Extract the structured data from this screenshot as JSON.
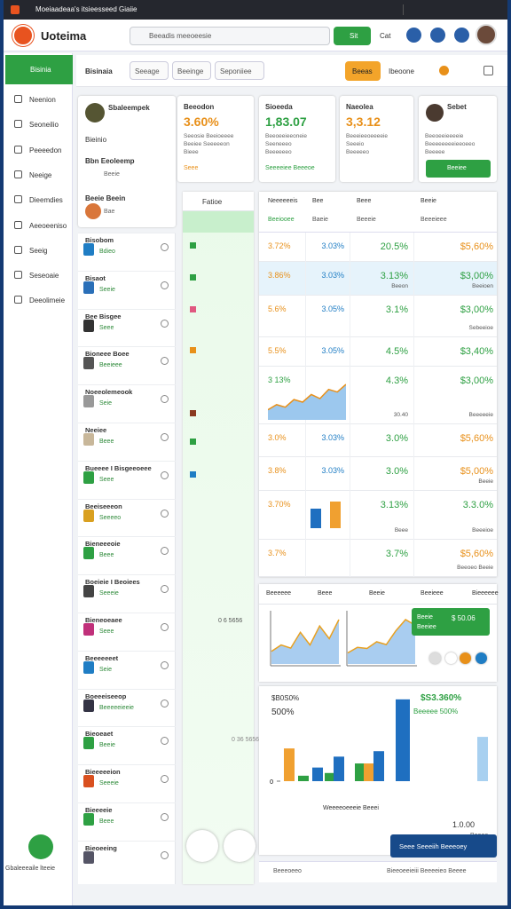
{
  "window": {
    "tab": "Moeiaadeaa's itsieesseed Giaiie"
  },
  "header": {
    "app": "Uoteima",
    "search": "Beeadis meeoeesie",
    "button": "Sit",
    "menu": "Cat"
  },
  "sidebar": {
    "active": "Bisinia",
    "items": [
      "Neenion",
      "Seoneilio",
      "Peeeedon",
      "Neeige",
      "Dieemdies",
      "Aeeoeeniso",
      "Seeig",
      "Seseoaie",
      "Deeolimeie"
    ],
    "footer": "Gbaleeeaile lteeie"
  },
  "toolbar": {
    "title": "Bisinaia",
    "tabs": [
      "Seeage",
      "Beeinge",
      "Seponiiee"
    ],
    "button": "Beeas",
    "link": "Ibeoone"
  },
  "profile": {
    "name": "Sbaleempek",
    "role": "Bieinio",
    "items": [
      {
        "title": "Bbn Eeoleemp",
        "sub": "Beeie"
      },
      {
        "title": "Beeie Beein",
        "sub": "Bae"
      }
    ]
  },
  "cards": [
    {
      "title": "Beeodon",
      "value": "3.60%",
      "lines": [
        "Seeosie Beeioeeee",
        "Beeiee Seeeeeon",
        "Bieee"
      ],
      "footer": "Seee"
    },
    {
      "title": "Sioeeda",
      "value": "1,83.07",
      "lines": [
        "Beeoeeieeoneie",
        "Seeneeeo",
        "Beeeeeeo"
      ],
      "footer": "Seeeeiee Beeeoe"
    },
    {
      "title": "Naeolea",
      "value": "3,3.12",
      "lines": [
        "Beeeieeoeeeeie",
        "Seeeio",
        "Beeeeeo"
      ]
    },
    {
      "title": "Sebet",
      "lines": [
        "Beeoeeieeeeie",
        "Beeeeeeeeieeoeeo",
        "Beeeee"
      ],
      "button": "Beeiee"
    }
  ],
  "list": [
    {
      "title": "Bisobom",
      "sub": "Bdieo"
    },
    {
      "title": "Bisaot",
      "sub": "Seeie"
    },
    {
      "title": "Bee Bisgee",
      "sub": "Seee"
    },
    {
      "title": "Bioneee Boee",
      "sub": "Beeieee"
    },
    {
      "title": "Noeeolemeook",
      "sub": "Seie"
    },
    {
      "title": "Neeiee",
      "sub": "Beee"
    },
    {
      "title": "Bueeee I Bisgeeoeee",
      "sub": "Seee"
    },
    {
      "title": "Beeiseeeon",
      "sub": "Seeeeo"
    },
    {
      "title": "Bieneeeoie",
      "sub": "Beee"
    },
    {
      "title": "Boeieie I Beoiees",
      "sub": "Seeeie"
    },
    {
      "title": "Bieneoeaee",
      "sub": "Seee"
    },
    {
      "title": "Beeeeeeet",
      "sub": "Seie"
    },
    {
      "title": "Boeeeiseeop",
      "sub": "Beeeeeieeie"
    },
    {
      "title": "Bieoeaet",
      "sub": "Beeie"
    },
    {
      "title": "Bieeeeeion",
      "sub": "Seeeie"
    },
    {
      "title": "Bieeeeie",
      "sub": "Beee"
    },
    {
      "title": "Bieoeeing"
    }
  ],
  "green_column": {
    "header": "Fatioe",
    "notes": [
      "0 6 5656",
      "0 36 5656"
    ]
  },
  "table": {
    "headers": [
      "Neeeeeeis",
      "Bee",
      "Beee",
      "Beeie"
    ],
    "subheaders": [
      "Beeiooee",
      "Baeie",
      "Beeeie",
      "Beeeieee"
    ],
    "rows": [
      {
        "a": "3.72%",
        "b": "3.03%",
        "c": "20.5%",
        "d": "$5,60%"
      },
      {
        "a": "3.86%",
        "b": "3.03%",
        "c": "3.13%",
        "d": "$3,00%",
        "c_sub": "Beeon",
        "d_sub": "Beeioen"
      },
      {
        "a": "5.6%",
        "b": "3.05%",
        "c": "3.1%",
        "d": "$3,00%",
        "d_sub": "Sebeeioe"
      },
      {
        "a": "5.5%",
        "b": "3.05%",
        "c": "4.5%",
        "d": "$3,40%"
      },
      {
        "a": "3 13%",
        "c": "4.3%",
        "d": "$3,00%",
        "c_sub": "30.40",
        "d_sub": "Beeeeeie",
        "spark": [
          2,
          3,
          2.5,
          4,
          3.5,
          5,
          4.2,
          6,
          5.5,
          7
        ]
      },
      {
        "a": "3.0%",
        "b": "3.03%",
        "c": "3.0%",
        "d": "$5,60%"
      },
      {
        "a": "3.8%",
        "b": "3.03%",
        "c": "3.0%",
        "d": "$5,00%",
        "d_sub": "Beeie"
      },
      {
        "a": "3.70%",
        "c": "3.13%",
        "d": "3.3.0%",
        "c_sub": "Beee",
        "d_sub": "Beeeioe",
        "bars": [
          {
            "color": "#1f6fc0",
            "value": 55
          },
          {
            "color": "#f0a030",
            "value": 75
          }
        ]
      },
      {
        "a": "3.7%",
        "c": "3.7%",
        "d": "$5,60%",
        "d_sub": "Beeoeo Beeie"
      }
    ]
  },
  "trend": {
    "headers": [
      "Beeeeee",
      "Beee",
      "Beeie",
      "Beeieee",
      "Bieeeeee"
    ],
    "line_a": [
      2,
      3,
      2.5,
      5,
      3,
      6,
      4,
      7
    ],
    "line_b": [
      2,
      3,
      2.8,
      4,
      3.5,
      6,
      8,
      7
    ],
    "callout": {
      "label": "Beeie",
      "value": "$ 50.06",
      "sub": "Beeiee"
    }
  },
  "summary": {
    "left_value": "$B0S0%",
    "left_sub": "500%",
    "right_value": "$S3.360%",
    "right_sub": "Beeeee 500%",
    "ylim": [
      0,
      125
    ],
    "yticks": [
      0
    ],
    "bars": [
      {
        "color": "#f0a030",
        "value": 48
      },
      {
        "color": "#2ea043",
        "value": 8
      },
      {
        "color": "#1f6fc0",
        "value": 20
      },
      {
        "color": "#2ea043",
        "value": 12
      },
      {
        "color": "#1f6fc0",
        "value": 36
      },
      {
        "color": "#2ea043",
        "value": 26
      },
      {
        "color": "#f0a030",
        "value": 26
      },
      {
        "color": "#1f6fc0",
        "value": 44
      },
      {
        "color": "#1f6fc0",
        "value": 120
      },
      {
        "color": "#a8d0f0",
        "value": 65
      }
    ],
    "axis_note": "Weeeeoeeeie Beeei",
    "corner": "1.0.00",
    "corner_sub": "Beeee",
    "button": "Seee Seeeiih Beeeoey"
  },
  "footer": {
    "left": "Beeeoeeo",
    "right": "Bieeoeeieiii Beeeeieo Beeee"
  }
}
